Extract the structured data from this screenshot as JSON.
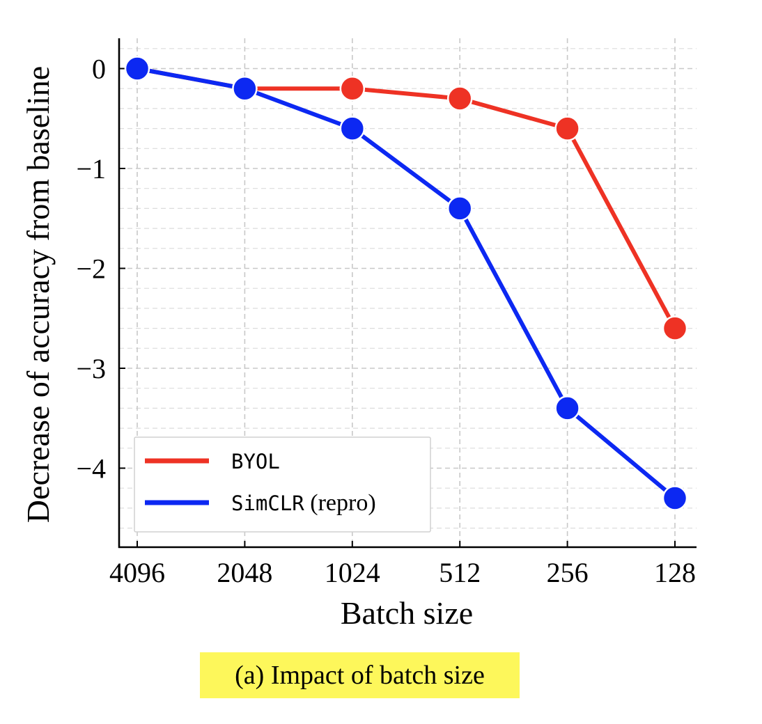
{
  "chart_data": {
    "type": "line",
    "xlabel": "Batch size",
    "ylabel": "Decrease of accuracy from baseline",
    "categories": [
      "4096",
      "2048",
      "1024",
      "512",
      "256",
      "128"
    ],
    "y_ticks": [
      0,
      -1,
      -2,
      -3,
      -4
    ],
    "y_tick_labels": [
      "0",
      "−1",
      "−2",
      "−3",
      "−4"
    ],
    "ylim": [
      -4.75,
      0.3
    ],
    "grid": true,
    "legend_position": "bottom-left",
    "series": [
      {
        "name": "BYOL",
        "name_code": "BYOL",
        "name_suffix": "",
        "color": "#ee3224",
        "values": [
          0,
          -0.2,
          -0.2,
          -0.3,
          -0.6,
          -2.6
        ]
      },
      {
        "name": "SimCLR (repro)",
        "name_code": "SimCLR",
        "name_suffix": " (repro)",
        "color": "#0c28f2",
        "values": [
          0,
          -0.2,
          -0.6,
          -1.4,
          -3.4,
          -4.3
        ]
      }
    ]
  },
  "caption": "(a) Impact of batch size"
}
